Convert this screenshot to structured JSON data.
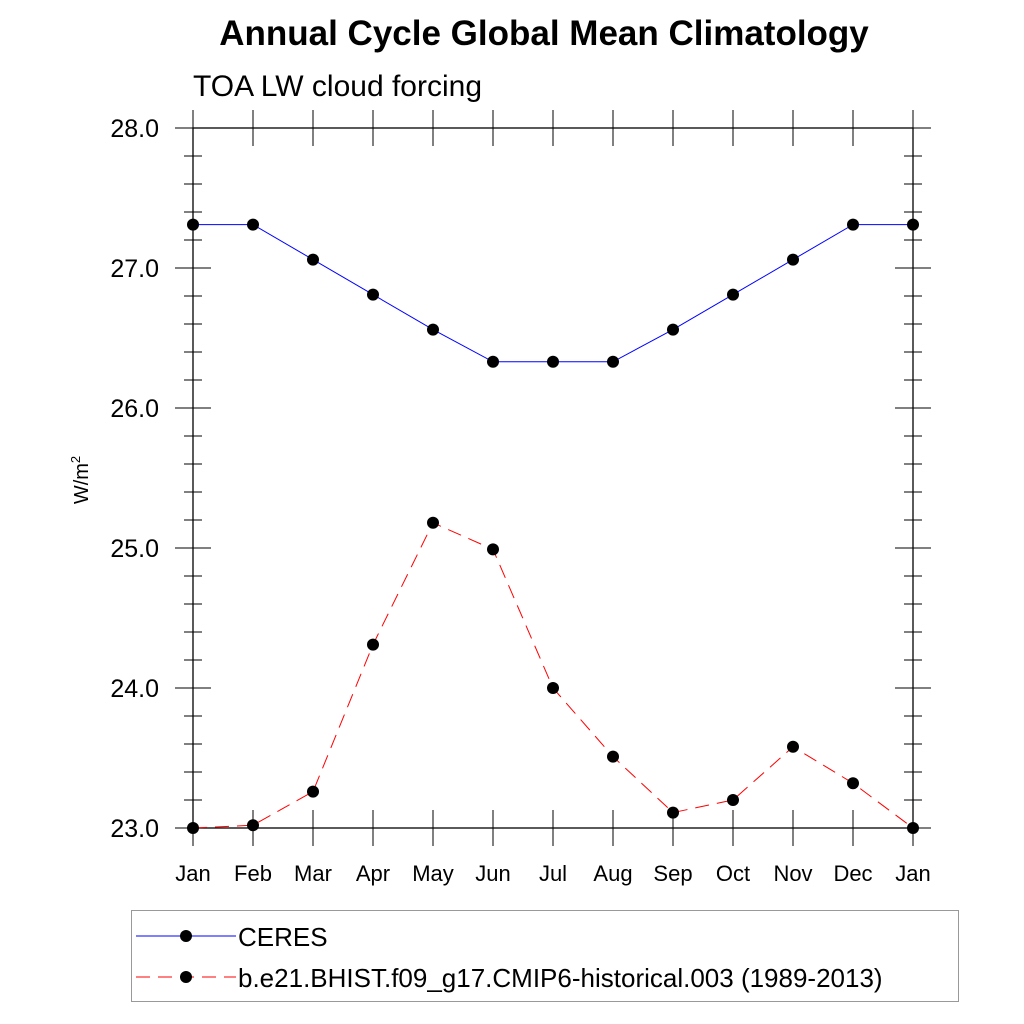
{
  "chart_data": {
    "type": "line",
    "title": "Annual Cycle Global Mean Climatology",
    "subtitle": "TOA LW cloud forcing",
    "ylabel": "W/m",
    "ylabel_superscript": "2",
    "xlabel": "",
    "categories": [
      "Jan",
      "Feb",
      "Mar",
      "Apr",
      "May",
      "Jun",
      "Jul",
      "Aug",
      "Sep",
      "Oct",
      "Nov",
      "Dec",
      "Jan"
    ],
    "ylim": [
      23.0,
      28.0
    ],
    "yticks": [
      "23.0",
      "24.0",
      "25.0",
      "26.0",
      "27.0",
      "28.0"
    ],
    "series": [
      {
        "name": "CERES",
        "color": "#0000ff",
        "dash": "solid",
        "values": [
          27.31,
          27.31,
          27.06,
          26.81,
          26.56,
          26.33,
          26.33,
          26.33,
          26.56,
          26.81,
          27.06,
          27.31,
          27.31
        ]
      },
      {
        "name": "b.e21.BHIST.f09_g17.CMIP6-historical.003 (1989-2013)",
        "color": "#ff0000",
        "dash": "dashed",
        "values": [
          23.0,
          23.02,
          23.26,
          24.31,
          25.18,
          24.99,
          24.0,
          23.51,
          23.11,
          23.2,
          23.58,
          23.32,
          23.0
        ]
      }
    ],
    "legend": "bottom"
  }
}
